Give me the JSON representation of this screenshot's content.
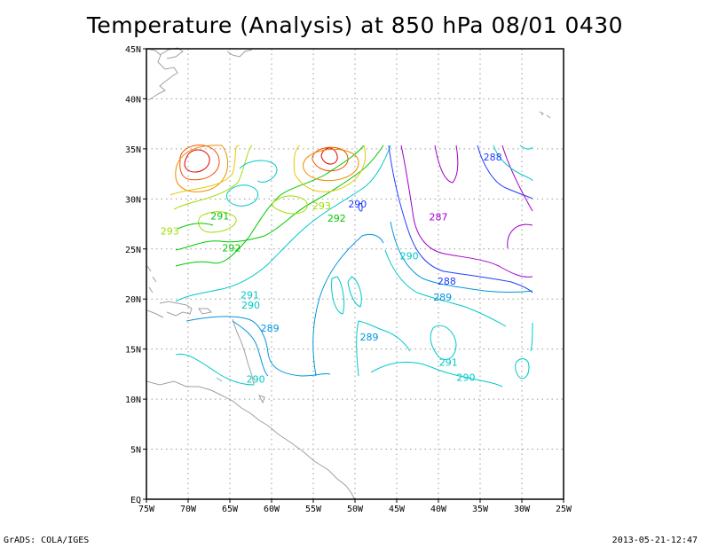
{
  "title": "Temperature (Analysis) at 850 hPa 08/01 0430",
  "footer": {
    "left": "GrADS: COLA/IGES",
    "right": "2013-05-21-12:47"
  },
  "map": {
    "lon_range": [
      -75,
      -25
    ],
    "lat_range": [
      0,
      45
    ],
    "x_ticks": [
      {
        "lon": -75,
        "label": "75W"
      },
      {
        "lon": -70,
        "label": "70W"
      },
      {
        "lon": -65,
        "label": "65W"
      },
      {
        "lon": -60,
        "label": "60W"
      },
      {
        "lon": -55,
        "label": "55W"
      },
      {
        "lon": -50,
        "label": "50W"
      },
      {
        "lon": -45,
        "label": "45W"
      },
      {
        "lon": -40,
        "label": "40W"
      },
      {
        "lon": -35,
        "label": "35W"
      },
      {
        "lon": -30,
        "label": "30W"
      },
      {
        "lon": -25,
        "label": "25W"
      }
    ],
    "y_ticks": [
      {
        "lat": 0,
        "label": "EQ"
      },
      {
        "lat": 5,
        "label": "5N"
      },
      {
        "lat": 10,
        "label": "10N"
      },
      {
        "lat": 15,
        "label": "15N"
      },
      {
        "lat": 20,
        "label": "20N"
      },
      {
        "lat": 25,
        "label": "25N"
      },
      {
        "lat": 30,
        "label": "30N"
      },
      {
        "lat": 35,
        "label": "35N"
      },
      {
        "lat": 40,
        "label": "40N"
      },
      {
        "lat": 45,
        "label": "45N"
      }
    ],
    "grid": true,
    "contour_labels": [
      {
        "text": "288",
        "lon": -33.5,
        "lat": 34.2,
        "color": "#1e3cff"
      },
      {
        "text": "287",
        "lon": -40,
        "lat": 28.2,
        "color": "#a000c8"
      },
      {
        "text": "290",
        "lon": -49.7,
        "lat": 29.5,
        "color": "#1e3cff"
      },
      {
        "text": "293",
        "lon": -54,
        "lat": 29.3,
        "color": "#a0dc00"
      },
      {
        "text": "292",
        "lon": -52.2,
        "lat": 28.1,
        "color": "#00c800"
      },
      {
        "text": "291",
        "lon": -66.2,
        "lat": 28.3,
        "color": "#00c800"
      },
      {
        "text": "293",
        "lon": -72.2,
        "lat": 26.8,
        "color": "#a0dc00"
      },
      {
        "text": "292",
        "lon": -64.8,
        "lat": 25.1,
        "color": "#00c800"
      },
      {
        "text": "290",
        "lon": -43.5,
        "lat": 24.3,
        "color": "#00c8c8"
      },
      {
        "text": "288",
        "lon": -39,
        "lat": 21.8,
        "color": "#1e3cff"
      },
      {
        "text": "289",
        "lon": -39.5,
        "lat": 20.2,
        "color": "#0096dc"
      },
      {
        "text": "291",
        "lon": -62.6,
        "lat": 20.4,
        "color": "#00c8c8"
      },
      {
        "text": "290",
        "lon": -62.5,
        "lat": 19.4,
        "color": "#00c8c8"
      },
      {
        "text": "289",
        "lon": -60.2,
        "lat": 17.1,
        "color": "#0096dc"
      },
      {
        "text": "289",
        "lon": -48.3,
        "lat": 16.2,
        "color": "#0096dc"
      },
      {
        "text": "291",
        "lon": -38.8,
        "lat": 13.7,
        "color": "#00c8c8"
      },
      {
        "text": "290",
        "lon": -36.7,
        "lat": 12.2,
        "color": "#00c8c8"
      },
      {
        "text": "290",
        "lon": -61.9,
        "lat": 12.0,
        "color": "#00c8c8"
      }
    ]
  }
}
